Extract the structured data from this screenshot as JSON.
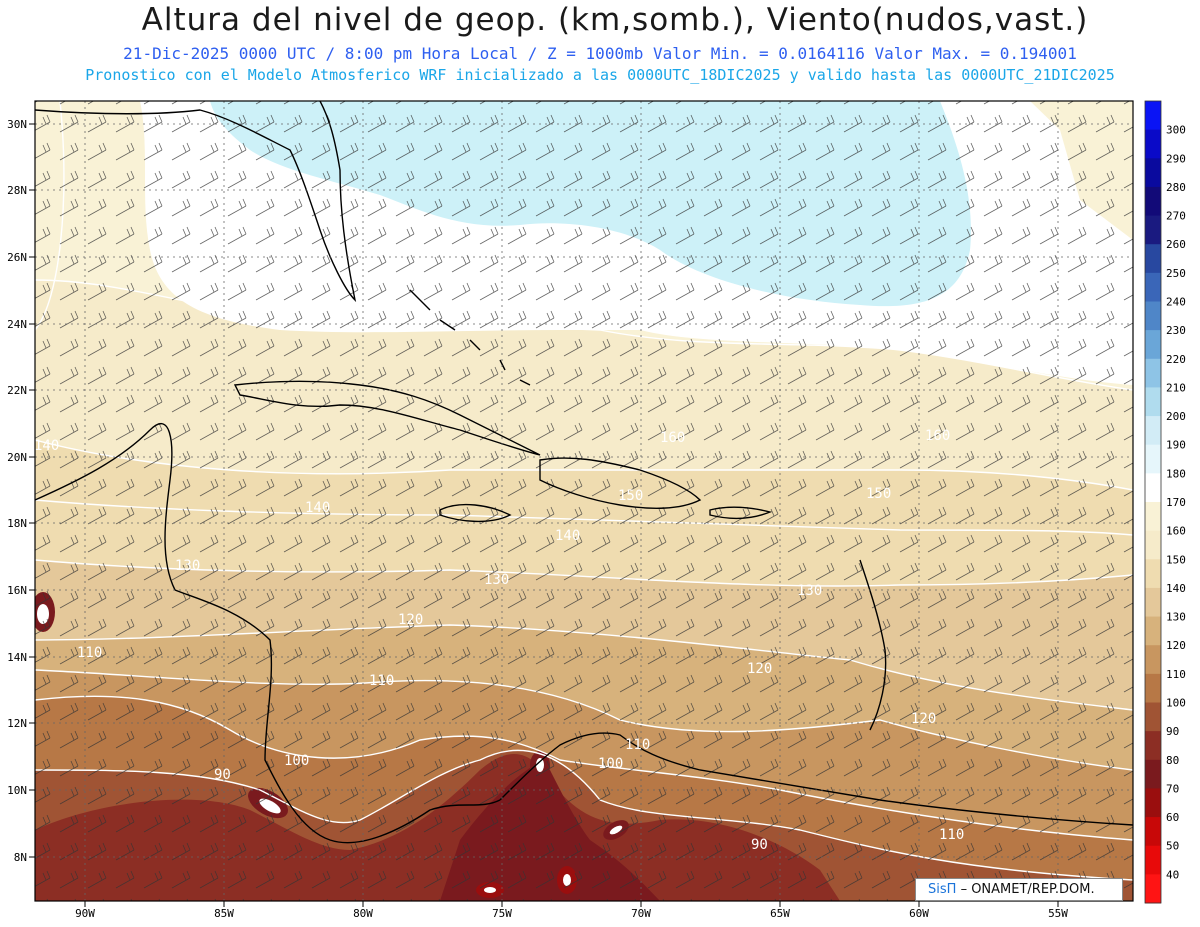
{
  "title": "Altura del nivel de geop. (km,somb.), Viento(nudos,vast.)",
  "subtitle_line1": "21-Dic-2025  0000 UTC / 8:00 pm Hora Local / Z = 1000mb  Valor Min. = 0.0164116  Valor Max. = 0.194001",
  "subtitle_line2": "Pronostico con el Modelo Atmosferico WRF inicializado a las 0000UTC_18DIC2025 y valido hasta las  0000UTC_21DIC2025",
  "map": {
    "lon_labels": [
      "90W",
      "85W",
      "80W",
      "75W",
      "70W",
      "65W",
      "60W",
      "55W"
    ],
    "lat_labels": [
      "30N",
      "28N",
      "26N",
      "24N",
      "22N",
      "20N",
      "18N",
      "16N",
      "14N",
      "12N",
      "10N",
      "8N"
    ],
    "contour_labels": [
      "140",
      "140",
      "140",
      "130",
      "130",
      "130",
      "120",
      "120",
      "120",
      "110",
      "110",
      "110",
      "100",
      "100",
      "90",
      "90",
      "160",
      "160",
      "150",
      "150",
      "110"
    ]
  },
  "colorbar": {
    "labels": [
      "300",
      "290",
      "280",
      "270",
      "260",
      "250",
      "240",
      "230",
      "220",
      "210",
      "200",
      "190",
      "180",
      "170",
      "160",
      "150",
      "140",
      "130",
      "120",
      "110",
      "100",
      "90",
      "80",
      "70",
      "60",
      "50",
      "40"
    ],
    "colors": [
      "#0a14f5",
      "#0a0ac8",
      "#0a0a9e",
      "#120a78",
      "#1a1a80",
      "#2848a0",
      "#3a66b8",
      "#4f86c8",
      "#6aa6d8",
      "#8ec4e6",
      "#b0dcee",
      "#d2ecf6",
      "#e6f6fb",
      "#ffffff",
      "#f9f2d6",
      "#f6ebca",
      "#efdcb0",
      "#e4c89a",
      "#d7b27c",
      "#c89660",
      "#b77846",
      "#a05434",
      "#8c2e24",
      "#7a1a1e",
      "#9a0e0e",
      "#c80808",
      "#e80a0a",
      "#ff1414"
    ]
  },
  "credit": {
    "brand": "SisΠ",
    "text": "– ONAMET/REP.DOM."
  }
}
